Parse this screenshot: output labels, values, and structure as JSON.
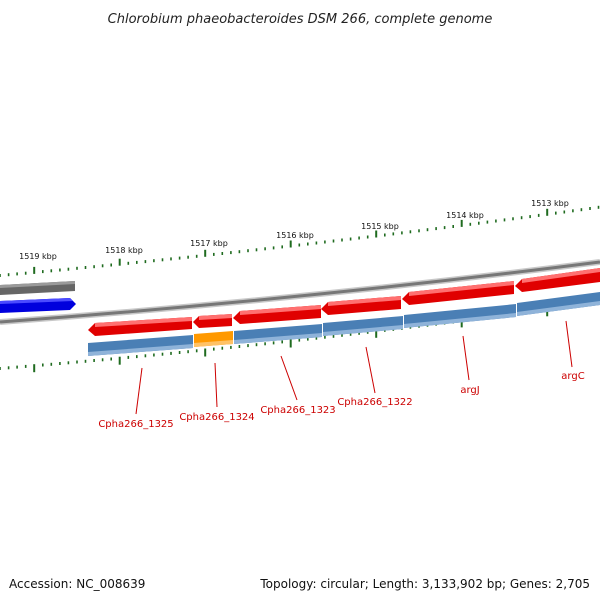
{
  "title": "Chlorobium phaeobacteroides DSM 266, complete genome",
  "footer": {
    "accession": "Accession: NC_008639",
    "summary": "Topology: circular; Length: 3,133,902 bp; Genes: 2,705"
  },
  "ticks": [
    {
      "label": "1519 kbp"
    },
    {
      "label": "1518 kbp"
    },
    {
      "label": "1517 kbp"
    },
    {
      "label": "1516 kbp"
    },
    {
      "label": "1515 kbp"
    },
    {
      "label": "1514 kbp"
    },
    {
      "label": "1513 kbp"
    }
  ],
  "genes": [
    {
      "label": "Cpha266_1325"
    },
    {
      "label": "Cpha266_1324"
    },
    {
      "label": "Cpha266_1323"
    },
    {
      "label": "Cpha266_1322"
    },
    {
      "label": "argJ"
    },
    {
      "label": "argC"
    }
  ],
  "colors": {
    "cds": "#e00000",
    "gene": "#4a7fb5",
    "highlight": "#ff9900",
    "backbone": "#808080",
    "other_cds": "#0000dd",
    "tick": "#1f6b1f",
    "label": "#cc0000"
  }
}
